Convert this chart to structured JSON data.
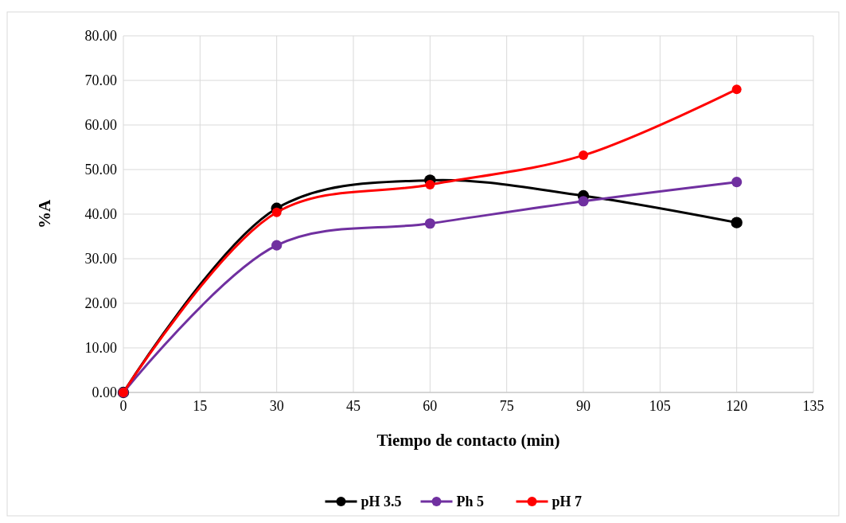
{
  "chart_data": {
    "type": "line",
    "xlabel": "Tiempo de contacto (min)",
    "ylabel": "%A",
    "x": [
      0,
      30,
      60,
      90,
      120
    ],
    "series": [
      {
        "name": "pH 3.5",
        "color": "#000000",
        "values": [
          0,
          41.3,
          47.6,
          44.1,
          38.1
        ]
      },
      {
        "name": "Ph 5",
        "color": "#7030a0",
        "values": [
          0,
          33.0,
          37.9,
          42.9,
          47.2
        ]
      },
      {
        "name": "pH 7",
        "color": "#ff0000",
        "values": [
          0,
          40.4,
          46.6,
          53.2,
          68.0
        ]
      }
    ],
    "xlim": [
      0,
      135
    ],
    "xticks": [
      0,
      15,
      30,
      45,
      60,
      75,
      90,
      105,
      120,
      135
    ],
    "ylim": [
      0,
      80
    ],
    "yticks": [
      {
        "value": 0,
        "label": "0.00"
      },
      {
        "value": 10,
        "label": "10.00"
      },
      {
        "value": 20,
        "label": "20.00"
      },
      {
        "value": 30,
        "label": "30.00"
      },
      {
        "value": 40,
        "label": "40.00"
      },
      {
        "value": 50,
        "label": "50.00"
      },
      {
        "value": 60,
        "label": "60.00"
      },
      {
        "value": 70,
        "label": "70.00"
      },
      {
        "value": 80,
        "label": "80.00"
      }
    ],
    "grid": true,
    "legend": "bottom",
    "marker": "circle",
    "line_style": "solid"
  }
}
